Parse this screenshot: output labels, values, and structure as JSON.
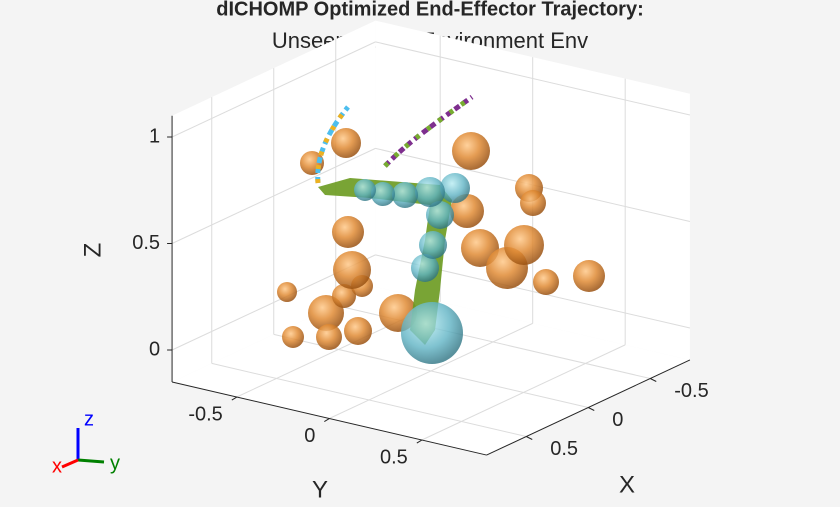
{
  "chart_data": {
    "type": "scene3d",
    "title": "dICHOMP Optimized End-Effector Trajectory:",
    "subtitle": "Unseen Target Environment Env",
    "xlabel": "X",
    "ylabel": "Y",
    "zlabel": "Z",
    "xlim": [
      -0.82,
      0.82
    ],
    "ylim": [
      -0.85,
      0.85
    ],
    "zlim": [
      -0.15,
      1.1
    ],
    "xticks": [
      -0.5,
      0,
      0.5
    ],
    "yticks": [
      -0.5,
      0,
      0.5
    ],
    "zticks": [
      0,
      0.5,
      1
    ],
    "grid": true,
    "triad_labels": {
      "x": "x",
      "y": "y",
      "z": "z"
    }
  }
}
